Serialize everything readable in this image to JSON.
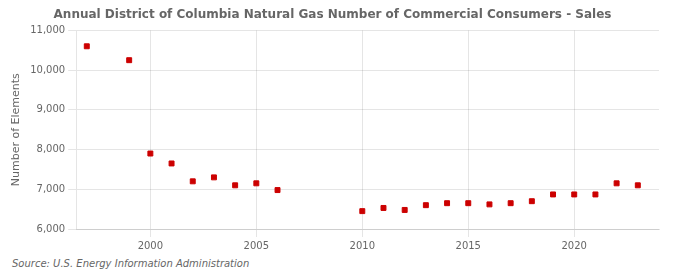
{
  "chart_data": {
    "type": "scatter",
    "title": "Annual District of Columbia Natural Gas Number of Commercial Consumers - Sales",
    "ylabel": "Number of Elements",
    "annotations": [
      "Source: U.S. Energy Information Administration"
    ],
    "x": [
      1997,
      1999,
      2000,
      2001,
      2002,
      2003,
      2004,
      2005,
      2006,
      2010,
      2011,
      2012,
      2013,
      2014,
      2015,
      2016,
      2017,
      2018,
      2019,
      2020,
      2021,
      2022,
      2023
    ],
    "values": [
      10600,
      10250,
      7900,
      7650,
      7200,
      7300,
      7100,
      7150,
      6980,
      6450,
      6530,
      6480,
      6600,
      6650,
      6650,
      6620,
      6650,
      6700,
      6870,
      6870,
      6870,
      7150,
      7100
    ],
    "color": "#cc0000",
    "marker": "square",
    "xlim": [
      1996.5,
      2024
    ],
    "xticks": [
      2000,
      2005,
      2010,
      2015,
      2020
    ],
    "ylim": [
      6000,
      11000
    ],
    "yticks": [
      {
        "value": 6000,
        "label": "6,000"
      },
      {
        "value": 7000,
        "label": "7,000"
      },
      {
        "value": 8000,
        "label": "8,000"
      },
      {
        "value": 9000,
        "label": "9,000"
      },
      {
        "value": 10000,
        "label": "10,000"
      },
      {
        "value": 11000,
        "label": "11,000"
      }
    ],
    "grid": true
  }
}
